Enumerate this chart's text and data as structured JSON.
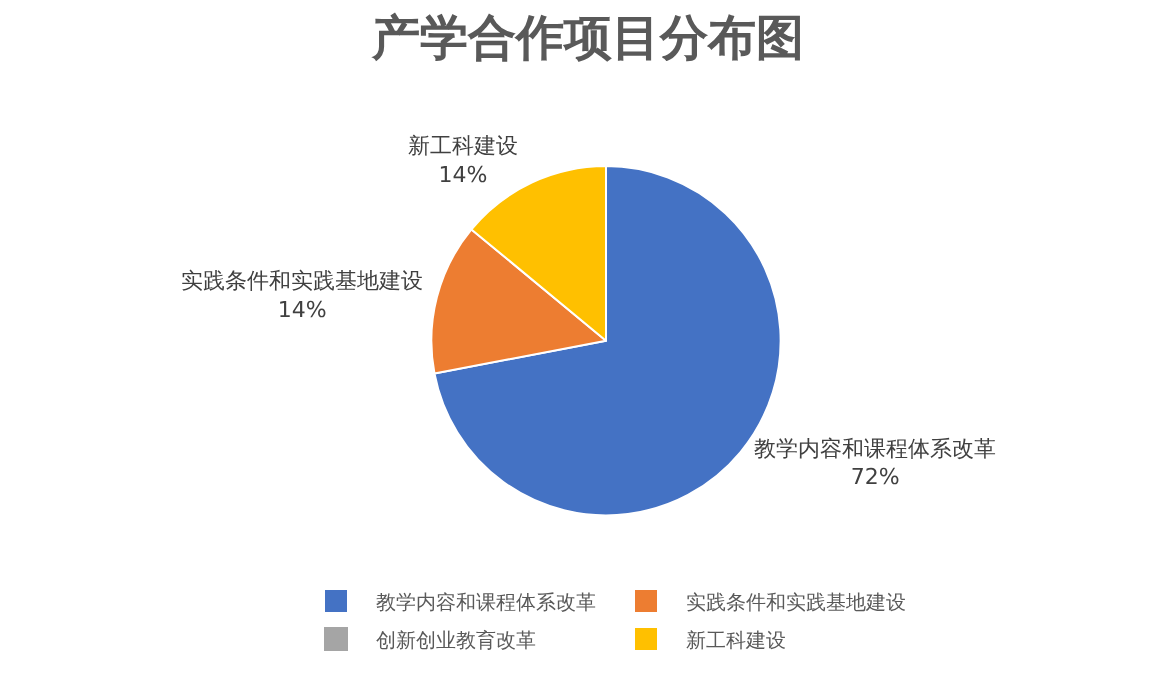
{
  "chart_data": {
    "type": "pie",
    "title": "产学合作项目分布图",
    "categories": [
      "教学内容和课程体系改革",
      "实践条件和实践基地建设",
      "创新创业教育改革",
      "新工科建设"
    ],
    "values": [
      72,
      14,
      0,
      14
    ],
    "value_labels": [
      "72%",
      "14%",
      null,
      "14%"
    ],
    "colors": [
      "#4472c4",
      "#ed7d31",
      "#a5a5a5",
      "#ffc000"
    ],
    "legend": "bottom"
  }
}
